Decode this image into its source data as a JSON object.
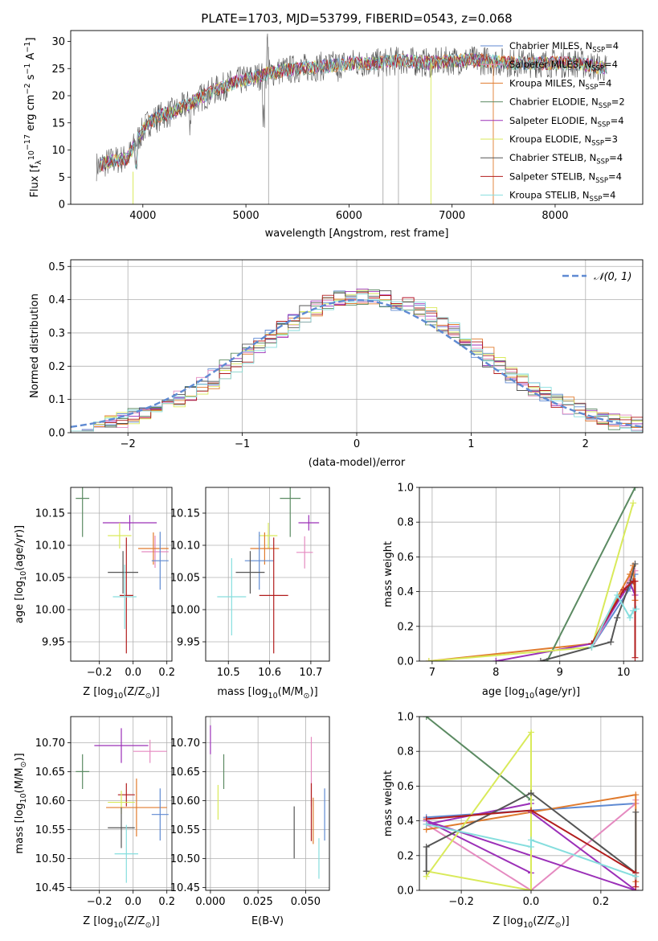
{
  "colors": {
    "chabrier_miles": "#5f8ad2",
    "salpeter_miles": "#e58ac0",
    "kroupa_miles": "#e07b2e",
    "chabrier_elodie": "#5b8a62",
    "salpeter_elodie": "#9b30b8",
    "kroupa_elodie": "#d9ea5a",
    "chabrier_stelib": "#555555",
    "salpeter_stelib": "#b21d1d",
    "kroupa_stelib": "#86dede",
    "gaussian": "#5f8ad2",
    "grid": "#b0b0b0"
  },
  "chart_data": [
    {
      "id": "spectrum",
      "type": "line",
      "title": "PLATE=1703, MJD=53799, FIBERID=0543, z=0.068",
      "xlabel": "wavelength [Angstrom, rest frame]",
      "ylabel": "Flux [f",
      "ylabel_parts": [
        "Flux [f",
        "λ",
        "10",
        "−17",
        " erg cm",
        "−2",
        " s",
        "−1",
        " A",
        "−1",
        "]"
      ],
      "xlim": [
        3300,
        8850
      ],
      "ylim": [
        0,
        32
      ],
      "xticks": [
        4000,
        5000,
        6000,
        7000,
        8000
      ],
      "yticks": [
        0,
        5,
        10,
        15,
        20,
        25,
        30
      ],
      "grid": false,
      "legend_position": "right",
      "legend": [
        {
          "base": "Chabrier MILES, N",
          "sub": "SSP",
          "tail": "=4",
          "color_key": "chabrier_miles"
        },
        {
          "base": "Salpeter MILES, N",
          "sub": "SSP",
          "tail": "=4",
          "color_key": "salpeter_miles"
        },
        {
          "base": "Kroupa MILES, N",
          "sub": "SSP",
          "tail": "=4",
          "color_key": "kroupa_miles"
        },
        {
          "base": "Chabrier ELODIE, N",
          "sub": "SSP",
          "tail": "=2",
          "color_key": "chabrier_elodie"
        },
        {
          "base": "Salpeter ELODIE, N",
          "sub": "SSP",
          "tail": "=4",
          "color_key": "salpeter_elodie"
        },
        {
          "base": "Kroupa ELODIE, N",
          "sub": "SSP",
          "tail": "=3",
          "color_key": "kroupa_elodie"
        },
        {
          "base": "Chabrier STELIB, N",
          "sub": "SSP",
          "tail": "=4",
          "color_key": "chabrier_stelib"
        },
        {
          "base": "Salpeter STELIB, N",
          "sub": "SSP",
          "tail": "=4",
          "color_key": "salpeter_stelib"
        },
        {
          "base": "Kroupa STELIB, N",
          "sub": "SSP",
          "tail": "=4",
          "color_key": "kroupa_stelib"
        }
      ],
      "continuum": [
        [
          3550,
          7
        ],
        [
          3700,
          8
        ],
        [
          3850,
          8.5
        ],
        [
          3950,
          12
        ],
        [
          4050,
          15
        ],
        [
          4200,
          16.5
        ],
        [
          4300,
          17
        ],
        [
          4500,
          19
        ],
        [
          4700,
          21
        ],
        [
          4900,
          22.5
        ],
        [
          5100,
          23.5
        ],
        [
          5300,
          24.5
        ],
        [
          5500,
          25
        ],
        [
          5800,
          25.5
        ],
        [
          6000,
          26
        ],
        [
          6300,
          26
        ],
        [
          6500,
          26.5
        ],
        [
          6800,
          26
        ],
        [
          7000,
          26.5
        ],
        [
          7300,
          26.5
        ],
        [
          7600,
          26
        ],
        [
          7900,
          26
        ],
        [
          8200,
          26
        ],
        [
          8500,
          25
        ]
      ]
    },
    {
      "id": "residuals",
      "type": "histogram",
      "xlabel": "(data-model)/error",
      "ylabel": "Normed distribution",
      "xlim": [
        -2.5,
        2.5
      ],
      "ylim": [
        0,
        0.52
      ],
      "xticks": [
        -2,
        -1,
        0,
        1,
        2
      ],
      "yticks": [
        0.0,
        0.1,
        0.2,
        0.3,
        0.4,
        0.5
      ],
      "grid": true,
      "legend_position": "top-right",
      "legend_label": "𝒩(0, 1)",
      "bin_width": 0.1
    },
    {
      "id": "age_vs_Z",
      "type": "errorbar",
      "xlabel": "Z [log",
      "xlabel_parts": [
        "Z [log",
        "10",
        "(Z/Z",
        "⊙",
        ")]"
      ],
      "ylabel_parts": [
        "age  [log",
        "10",
        "(age/yr)]"
      ],
      "xlim": [
        -0.37,
        0.23
      ],
      "ylim": [
        9.92,
        10.19
      ],
      "xticks": [
        -0.2,
        0.0,
        0.2
      ],
      "yticks": [
        9.95,
        10.0,
        10.05,
        10.1,
        10.15
      ],
      "grid": true,
      "points": [
        {
          "color_key": "chabrier_elodie",
          "x": -0.3,
          "y": 10.173,
          "xerr": 0.04,
          "yerr": 0.06
        },
        {
          "color_key": "salpeter_elodie",
          "x": -0.02,
          "y": 10.135,
          "xerr": 0.16,
          "yerr": 0.012
        },
        {
          "color_key": "kroupa_elodie",
          "x": -0.08,
          "y": 10.115,
          "xerr": 0.07,
          "yerr": 0.02
        },
        {
          "color_key": "salpeter_miles",
          "x": 0.13,
          "y": 10.09,
          "xerr": 0.08,
          "yerr": 0.025
        },
        {
          "color_key": "kroupa_miles",
          "x": 0.12,
          "y": 10.095,
          "xerr": 0.09,
          "yerr": 0.025
        },
        {
          "color_key": "chabrier_miles",
          "x": 0.16,
          "y": 10.076,
          "xerr": 0.05,
          "yerr": 0.045
        },
        {
          "color_key": "chabrier_stelib",
          "x": -0.06,
          "y": 10.058,
          "xerr": 0.09,
          "yerr": 0.033
        },
        {
          "color_key": "salpeter_stelib",
          "x": -0.04,
          "y": 10.022,
          "xerr": 0.04,
          "yerr": 0.09
        },
        {
          "color_key": "kroupa_stelib",
          "x": -0.05,
          "y": 10.02,
          "xerr": 0.07,
          "yerr": 0.05
        }
      ]
    },
    {
      "id": "age_vs_mass",
      "type": "errorbar",
      "xlabel_parts": [
        "mass [log",
        "10",
        "(M/M",
        "⊙",
        ")]"
      ],
      "xlim": [
        10.445,
        10.745
      ],
      "ylim": [
        9.92,
        10.19
      ],
      "xticks": [
        10.5,
        10.6,
        10.7
      ],
      "yticks": [
        9.95,
        10.0,
        10.05,
        10.1,
        10.15
      ],
      "grid": true,
      "points": [
        {
          "color_key": "chabrier_elodie",
          "x": 10.65,
          "y": 10.173,
          "xerr": 0.025,
          "yerr": 0.06
        },
        {
          "color_key": "salpeter_elodie",
          "x": 10.695,
          "y": 10.135,
          "xerr": 0.025,
          "yerr": 0.012
        },
        {
          "color_key": "kroupa_elodie",
          "x": 10.597,
          "y": 10.115,
          "xerr": 0.022,
          "yerr": 0.02
        },
        {
          "color_key": "kroupa_miles",
          "x": 10.588,
          "y": 10.095,
          "xerr": 0.035,
          "yerr": 0.025
        },
        {
          "color_key": "salpeter_miles",
          "x": 10.685,
          "y": 10.089,
          "xerr": 0.02,
          "yerr": 0.025
        },
        {
          "color_key": "chabrier_miles",
          "x": 10.575,
          "y": 10.076,
          "xerr": 0.035,
          "yerr": 0.045
        },
        {
          "color_key": "chabrier_stelib",
          "x": 10.553,
          "y": 10.058,
          "xerr": 0.035,
          "yerr": 0.033
        },
        {
          "color_key": "salpeter_stelib",
          "x": 10.61,
          "y": 10.022,
          "xerr": 0.035,
          "yerr": 0.09
        },
        {
          "color_key": "kroupa_stelib",
          "x": 10.508,
          "y": 10.02,
          "xerr": 0.035,
          "yerr": 0.06
        }
      ]
    },
    {
      "id": "weight_vs_age",
      "type": "line",
      "xlabel_parts": [
        "age  [log",
        "10",
        "(age/yr)]"
      ],
      "ylabel": "mass weight",
      "xlim": [
        6.8,
        10.3
      ],
      "ylim": [
        0,
        1.0
      ],
      "xticks": [
        7,
        8,
        9,
        10
      ],
      "yticks": [
        0.0,
        0.2,
        0.4,
        0.6,
        0.8,
        1.0
      ],
      "grid": true,
      "series": [
        {
          "color_key": "chabrier_miles",
          "x": [
            9.5,
            10.1,
            10.18
          ],
          "y": [
            0.08,
            0.42,
            0.5
          ]
        },
        {
          "color_key": "salpeter_miles",
          "x": [
            9.5,
            10.0,
            10.12,
            10.18
          ],
          "y": [
            0.08,
            0.4,
            0.5,
            0.52
          ]
        },
        {
          "color_key": "kroupa_miles",
          "x": [
            6.95,
            9.5,
            10.1,
            10.15,
            10.18
          ],
          "y": [
            0.0,
            0.1,
            0.5,
            0.55,
            0.35
          ]
        },
        {
          "color_key": "chabrier_elodie",
          "x": [
            8.8,
            10.18
          ],
          "y": [
            0.0,
            1.0
          ]
        },
        {
          "color_key": "salpeter_elodie",
          "x": [
            8.0,
            9.5,
            10.1,
            10.18
          ],
          "y": [
            0.0,
            0.1,
            0.45,
            0.38
          ]
        },
        {
          "color_key": "kroupa_elodie",
          "x": [
            6.95,
            9.5,
            10.15
          ],
          "y": [
            0.0,
            0.08,
            0.91
          ]
        },
        {
          "color_key": "chabrier_stelib",
          "x": [
            8.7,
            9.8,
            9.9,
            10.1,
            10.18
          ],
          "y": [
            0.0,
            0.11,
            0.25,
            0.45,
            0.56
          ]
        },
        {
          "color_key": "salpeter_stelib",
          "x": [
            9.5,
            10.0,
            10.15,
            10.18,
            10.18
          ],
          "y": [
            0.1,
            0.41,
            0.46,
            0.46,
            0.02
          ]
        },
        {
          "color_key": "kroupa_stelib",
          "x": [
            9.5,
            9.9,
            10.1,
            10.15,
            10.2
          ],
          "y": [
            0.08,
            0.38,
            0.25,
            0.29,
            0.3
          ]
        }
      ]
    },
    {
      "id": "mass_vs_Z",
      "type": "errorbar",
      "xlabel_parts": [
        "Z [log",
        "10",
        "(Z/Z",
        "⊙",
        ")]"
      ],
      "ylabel_parts": [
        "mass [log",
        "10",
        "(M/M",
        "⊙",
        ")]"
      ],
      "xlim": [
        -0.37,
        0.23
      ],
      "ylim": [
        10.445,
        10.745
      ],
      "xticks": [
        -0.2,
        0.0,
        0.2
      ],
      "yticks": [
        10.45,
        10.5,
        10.55,
        10.6,
        10.65,
        10.7
      ],
      "grid": true,
      "points": [
        {
          "color_key": "chabrier_elodie",
          "x": -0.3,
          "y": 10.65,
          "xerr": 0.04,
          "yerr": 0.03
        },
        {
          "color_key": "salpeter_elodie",
          "x": -0.07,
          "y": 10.695,
          "xerr": 0.16,
          "yerr": 0.03
        },
        {
          "color_key": "salpeter_miles",
          "x": 0.1,
          "y": 10.685,
          "xerr": 0.1,
          "yerr": 0.02
        },
        {
          "color_key": "salpeter_stelib",
          "x": -0.04,
          "y": 10.61,
          "xerr": 0.05,
          "yerr": 0.02
        },
        {
          "color_key": "kroupa_elodie",
          "x": -0.07,
          "y": 10.597,
          "xerr": 0.08,
          "yerr": 0.02
        },
        {
          "color_key": "kroupa_miles",
          "x": 0.02,
          "y": 10.588,
          "xerr": 0.18,
          "yerr": 0.05
        },
        {
          "color_key": "chabrier_miles",
          "x": 0.16,
          "y": 10.576,
          "xerr": 0.05,
          "yerr": 0.045
        },
        {
          "color_key": "chabrier_stelib",
          "x": -0.07,
          "y": 10.553,
          "xerr": 0.08,
          "yerr": 0.035
        },
        {
          "color_key": "kroupa_stelib",
          "x": -0.04,
          "y": 10.508,
          "xerr": 0.07,
          "yerr": 0.05
        }
      ]
    },
    {
      "id": "mass_vs_ebv",
      "type": "errorbar",
      "xlabel": "E(B-V)",
      "xlim": [
        -0.0025,
        0.0625
      ],
      "ylim": [
        10.445,
        10.745
      ],
      "xticks": [
        0.0,
        0.025,
        0.05
      ],
      "xtick_labels": [
        "0.000",
        "0.025",
        "0.050"
      ],
      "yticks": [
        10.45,
        10.5,
        10.55,
        10.6,
        10.65,
        10.7
      ],
      "grid": true,
      "points": [
        {
          "color_key": "salpeter_elodie",
          "x": 0.0,
          "y": 10.705,
          "xerr": 0,
          "yerr": 0.025
        },
        {
          "color_key": "chabrier_elodie",
          "x": 0.007,
          "y": 10.65,
          "xerr": 0,
          "yerr": 0.03
        },
        {
          "color_key": "kroupa_elodie",
          "x": 0.004,
          "y": 10.597,
          "xerr": 0,
          "yerr": 0.03
        },
        {
          "color_key": "salpeter_miles",
          "x": 0.053,
          "y": 10.65,
          "xerr": 0,
          "yerr": 0.06
        },
        {
          "color_key": "salpeter_stelib",
          "x": 0.053,
          "y": 10.58,
          "xerr": 0,
          "yerr": 0.05
        },
        {
          "color_key": "chabrier_miles",
          "x": 0.06,
          "y": 10.576,
          "xerr": 0,
          "yerr": 0.045
        },
        {
          "color_key": "kroupa_miles",
          "x": 0.054,
          "y": 10.565,
          "xerr": 0,
          "yerr": 0.04
        },
        {
          "color_key": "chabrier_stelib",
          "x": 0.044,
          "y": 10.545,
          "xerr": 0,
          "yerr": 0.045
        },
        {
          "color_key": "kroupa_stelib",
          "x": 0.057,
          "y": 10.5,
          "xerr": 0,
          "yerr": 0.035
        }
      ]
    },
    {
      "id": "weight_vs_Z",
      "type": "line",
      "xlabel_parts": [
        "Z [log",
        "10",
        "(Z/Z",
        "⊙",
        ")]"
      ],
      "ylabel": "mass weight",
      "xlim": [
        -0.32,
        0.32
      ],
      "ylim": [
        0,
        1.0
      ],
      "xticks": [
        -0.2,
        0.0,
        0.2
      ],
      "yticks": [
        0.0,
        0.2,
        0.4,
        0.6,
        0.8,
        1.0
      ],
      "grid": true,
      "series": [
        {
          "color_key": "chabrier_miles",
          "x": [
            -0.3,
            0.0,
            0.3
          ],
          "y": [
            0.42,
            0.46,
            0.5
          ]
        },
        {
          "color_key": "salpeter_miles",
          "x": [
            -0.3,
            0.0,
            0.3,
            0.3
          ],
          "y": [
            0.38,
            0.0,
            0.5,
            0.52
          ]
        },
        {
          "color_key": "kroupa_miles",
          "x": [
            -0.3,
            0.0,
            0.3,
            0.3
          ],
          "y": [
            0.35,
            0.45,
            0.55,
            0.05
          ]
        },
        {
          "color_key": "chabrier_elodie",
          "x": [
            -0.3,
            0.0
          ],
          "y": [
            1.0,
            0.52
          ]
        },
        {
          "color_key": "salpeter_elodie",
          "x": [
            -0.3,
            0.0,
            0.0,
            0.3,
            -0.3,
            0.0
          ],
          "y": [
            0.38,
            0.5,
            0.45,
            0.0,
            0.4,
            0.1
          ]
        },
        {
          "color_key": "kroupa_elodie",
          "x": [
            -0.3,
            0.0,
            0.0,
            -0.3
          ],
          "y": [
            0.08,
            0.91,
            0.0,
            0.11
          ]
        },
        {
          "color_key": "chabrier_stelib",
          "x": [
            -0.3,
            -0.3,
            0.0,
            0.3,
            0.3
          ],
          "y": [
            0.11,
            0.25,
            0.56,
            0.1,
            0.45
          ]
        },
        {
          "color_key": "salpeter_stelib",
          "x": [
            -0.3,
            0.0,
            0.3,
            0.3
          ],
          "y": [
            0.41,
            0.46,
            0.1,
            0.02
          ]
        },
        {
          "color_key": "kroupa_stelib",
          "x": [
            -0.3,
            0.0,
            0.0,
            0.3
          ],
          "y": [
            0.38,
            0.25,
            0.29,
            0.08
          ]
        }
      ]
    }
  ]
}
